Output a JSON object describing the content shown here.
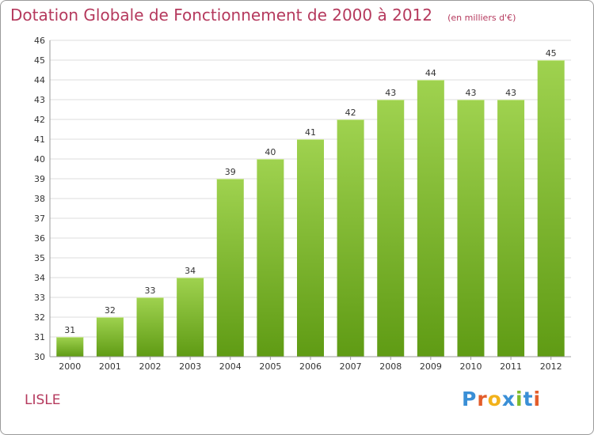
{
  "header": {
    "title": "Dotation Globale de Fonctionnement de 2000 à 2012",
    "subtitle": "(en milliers d'€)"
  },
  "footer": {
    "commune": "LISLE",
    "logo": {
      "letters": [
        "P",
        "r",
        "o",
        "x",
        "i",
        "t",
        "i"
      ],
      "colors": [
        "#3a8fd6",
        "#e35d2b",
        "#f2b21b",
        "#3a8fd6",
        "#7fbb2c",
        "#3a8fd6",
        "#e35d2b"
      ]
    }
  },
  "colors": {
    "title": "#b5395d",
    "bar_top": "#9fd24f",
    "bar_bottom": "#5f9b14",
    "grid": "#dcdcdc",
    "axis_text": "#333333"
  },
  "chart_data": {
    "type": "bar",
    "title": "Dotation Globale de Fonctionnement de 2000 à 2012",
    "subtitle": "(en milliers d'€)",
    "categories": [
      "2000",
      "2001",
      "2002",
      "2003",
      "2004",
      "2005",
      "2006",
      "2007",
      "2008",
      "2009",
      "2010",
      "2011",
      "2012"
    ],
    "values": [
      31,
      32,
      33,
      34,
      39,
      40,
      41,
      42,
      43,
      44,
      43,
      43,
      45
    ],
    "ylim": [
      30,
      46
    ],
    "yticks": [
      30,
      31,
      32,
      33,
      34,
      35,
      36,
      37,
      38,
      39,
      40,
      41,
      42,
      43,
      44,
      45,
      46
    ],
    "grid": true,
    "data_labels": true
  }
}
